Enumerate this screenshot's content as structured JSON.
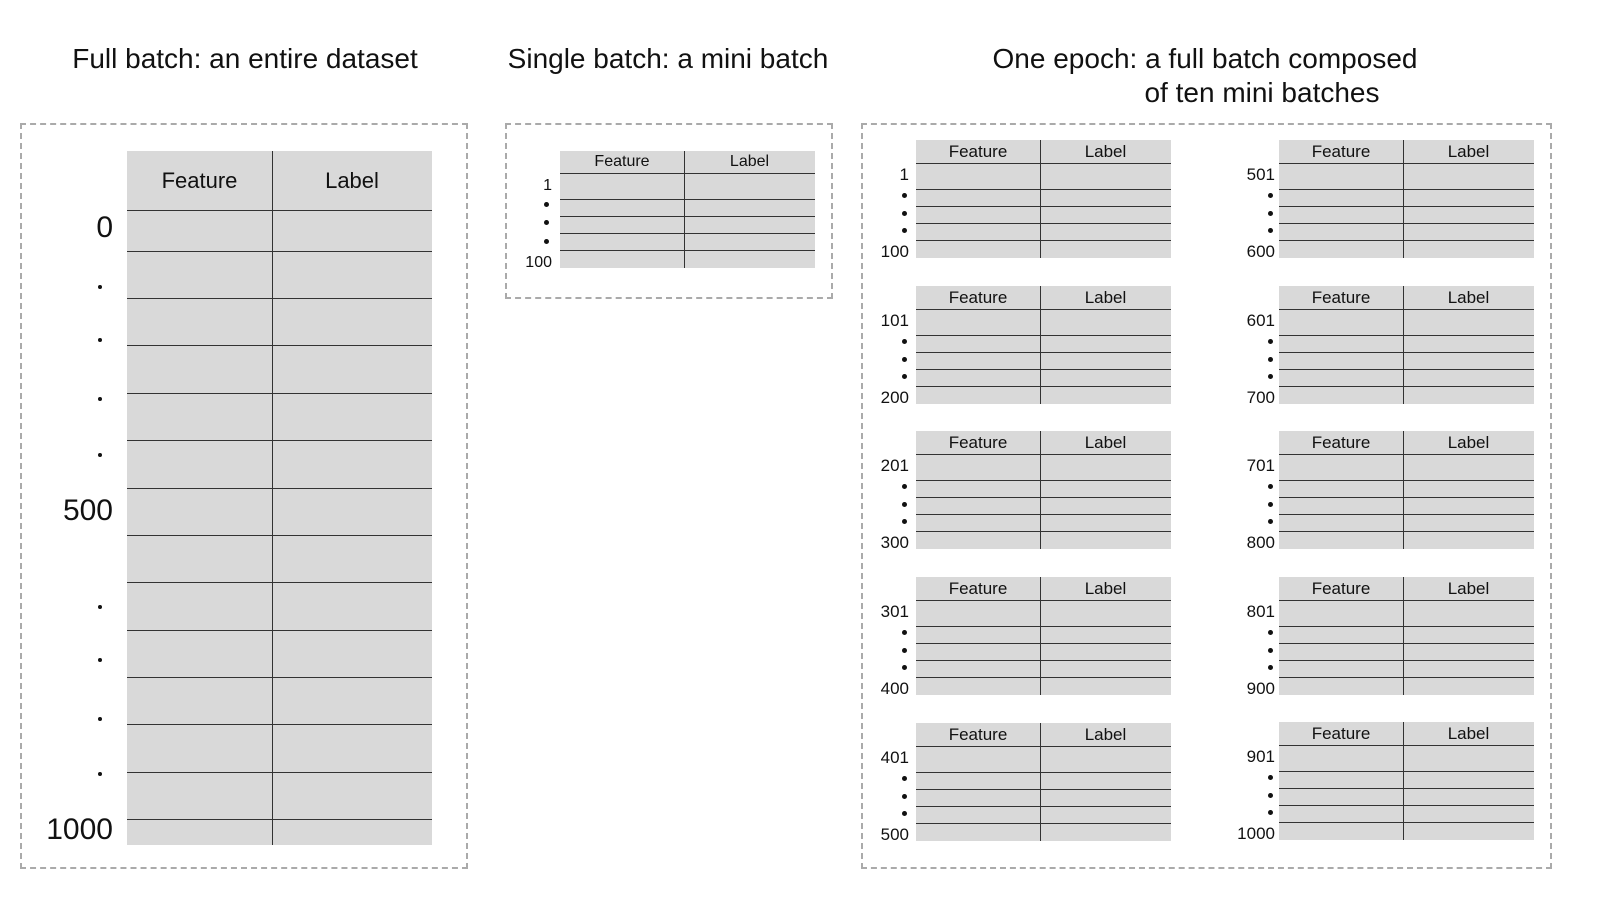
{
  "titles": {
    "full_batch": "Full batch: an entire dataset",
    "single_batch": "Single batch: a mini batch",
    "epoch_line1": "One epoch: a full batch composed",
    "epoch_line2": "of ten mini batches"
  },
  "columns": {
    "feature": "Feature",
    "label": "Label"
  },
  "full_batch": {
    "start": "0",
    "middle": "500",
    "end": "1000"
  },
  "single_batch": {
    "start": "1",
    "end": "100"
  },
  "epoch_batches": [
    {
      "start": "1",
      "end": "100"
    },
    {
      "start": "101",
      "end": "200"
    },
    {
      "start": "201",
      "end": "300"
    },
    {
      "start": "301",
      "end": "400"
    },
    {
      "start": "401",
      "end": "500"
    },
    {
      "start": "501",
      "end": "600"
    },
    {
      "start": "601",
      "end": "700"
    },
    {
      "start": "701",
      "end": "800"
    },
    {
      "start": "801",
      "end": "900"
    },
    {
      "start": "901",
      "end": "1000"
    }
  ],
  "colors": {
    "table_fill": "#d9d9d9",
    "dashed_border": "#aaaaaa"
  }
}
